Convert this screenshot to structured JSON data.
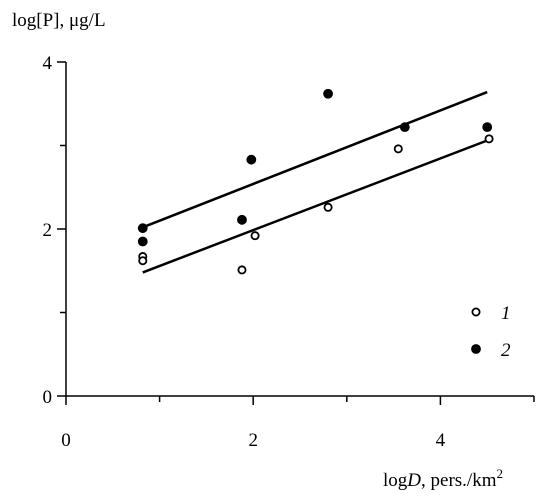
{
  "chart_data": {
    "type": "scatter",
    "ylabel": "log[P], μg/L",
    "xlabel": {
      "prefix": "log",
      "variable": "D",
      "suffix": ", pers./km",
      "superscript": "2"
    },
    "xlim": [
      0,
      5
    ],
    "ylim": [
      0,
      4
    ],
    "x_ticks": [
      0,
      2,
      4
    ],
    "y_ticks": [
      0,
      2,
      4
    ],
    "x_minor_ticks": [
      1,
      3,
      5
    ],
    "y_minor_ticks": [
      1,
      3
    ],
    "grid": false,
    "legend_position": "bottom-right",
    "series": [
      {
        "name": "1",
        "marker": "open-circle",
        "points": [
          [
            0.82,
            1.67
          ],
          [
            0.82,
            1.62
          ],
          [
            1.88,
            1.51
          ],
          [
            2.02,
            1.92
          ],
          [
            2.8,
            2.26
          ],
          [
            3.55,
            2.96
          ],
          [
            4.52,
            3.08
          ]
        ],
        "trend_line": [
          [
            0.82,
            1.48
          ],
          [
            4.5,
            3.06
          ]
        ]
      },
      {
        "name": "2",
        "marker": "filled-circle",
        "points": [
          [
            0.82,
            2.01
          ],
          [
            0.82,
            1.85
          ],
          [
            1.88,
            2.11
          ],
          [
            1.98,
            2.83
          ],
          [
            2.8,
            3.62
          ],
          [
            3.62,
            3.22
          ],
          [
            4.5,
            3.22
          ]
        ],
        "trend_line": [
          [
            0.82,
            2.02
          ],
          [
            4.5,
            3.64
          ]
        ]
      }
    ]
  }
}
